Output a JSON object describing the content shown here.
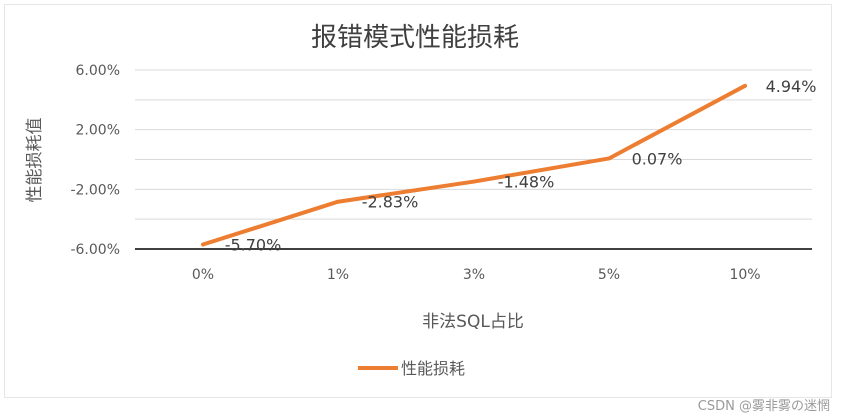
{
  "chart_data": {
    "type": "line",
    "title": "报错模式性能损耗",
    "xlabel": "非法SQL占比",
    "ylabel": "性能损耗值",
    "categories": [
      "0%",
      "1%",
      "3%",
      "5%",
      "10%"
    ],
    "series": [
      {
        "name": "性能损耗",
        "values": [
          -5.7,
          -2.83,
          -1.48,
          0.07,
          4.94
        ],
        "labels": [
          "-5.70%",
          "-2.83%",
          "-1.48%",
          "0.07%",
          "4.94%"
        ],
        "color": "#ED7D31"
      }
    ],
    "ylim": [
      -6,
      6
    ],
    "yticks": [
      6,
      2,
      -2,
      -6
    ],
    "ytick_labels": [
      "6.00%",
      "2.00%",
      "-2.00%",
      "-6.00%"
    ],
    "grid": true,
    "legend": "bottom"
  },
  "watermark": "CSDN @雾非雾の迷惘"
}
